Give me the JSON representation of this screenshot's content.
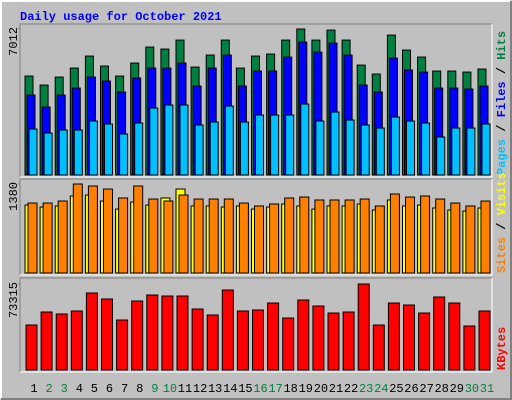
{
  "chart_data": [
    {
      "type": "bar",
      "title": "Daily usage for October 2021",
      "categories": [
        "1",
        "2",
        "3",
        "4",
        "5",
        "6",
        "7",
        "8",
        "9",
        "10",
        "11",
        "12",
        "13",
        "14",
        "15",
        "16",
        "17",
        "18",
        "19",
        "20",
        "21",
        "22",
        "23",
        "24",
        "25",
        "26",
        "27",
        "28",
        "29",
        "30",
        "31"
      ],
      "category_colors": [
        "#000000",
        "#008040",
        "#008040",
        "#000000",
        "#000000",
        "#000000",
        "#000000",
        "#000000",
        "#008040",
        "#008040",
        "#000000",
        "#000000",
        "#000000",
        "#000000",
        "#000000",
        "#008040",
        "#008040",
        "#000000",
        "#000000",
        "#000000",
        "#000000",
        "#000000",
        "#008040",
        "#008040",
        "#000000",
        "#000000",
        "#000000",
        "#000000",
        "#000000",
        "#008040",
        "#008040"
      ],
      "ylim": [
        0,
        7012
      ],
      "yticks": [
        7012
      ],
      "legend_separator": " / ",
      "series": [
        {
          "name": "Hits",
          "color": "#008040",
          "values": [
            4752,
            4320,
            4704,
            5136,
            5712,
            5232,
            4752,
            5376,
            6144,
            6048,
            6480,
            5184,
            5760,
            6480,
            5136,
            5712,
            5808,
            6480,
            7012,
            6480,
            6960,
            6480,
            5280,
            4848,
            6720,
            6000,
            5664,
            4992,
            4992,
            4944,
            5088
          ]
        },
        {
          "name": "Files",
          "color": "#0000ff",
          "values": [
            3840,
            3264,
            3840,
            4176,
            4704,
            4512,
            3984,
            4656,
            5136,
            5136,
            5376,
            4272,
            5136,
            5760,
            4272,
            4992,
            4992,
            5664,
            6384,
            5904,
            6336,
            5760,
            4320,
            3984,
            5616,
            5040,
            4944,
            4176,
            4176,
            4128,
            4272
          ]
        },
        {
          "name": "Pages",
          "color": "#00c0ff",
          "values": [
            2208,
            2016,
            2160,
            2160,
            2592,
            2448,
            1968,
            2496,
            3216,
            3360,
            3360,
            2400,
            2544,
            3312,
            2544,
            2880,
            2880,
            2880,
            3408,
            2592,
            3024,
            2640,
            2400,
            2256,
            2784,
            2592,
            2496,
            1824,
            2256,
            2256,
            2448
          ]
        }
      ]
    },
    {
      "type": "bar",
      "ylim": [
        0,
        1380
      ],
      "yticks": [
        1380
      ],
      "legend_separator": " / ",
      "series": [
        {
          "name": "Visits",
          "color": "#ffff00",
          "values": [
            1054,
            1023,
            1039,
            1194,
            1209,
            1116,
            992,
            1101,
            1054,
            1163,
            1302,
            1039,
            1039,
            1023,
            1039,
            992,
            1023,
            1070,
            1039,
            992,
            1039,
            1039,
            1070,
            977,
            1132,
            1039,
            1054,
            1008,
            977,
            961,
            1008
          ]
        },
        {
          "name": "Sites",
          "color": "#ff8000",
          "values": [
            1085,
            1085,
            1116,
            1380,
            1349,
            1302,
            1163,
            1349,
            1147,
            1116,
            1209,
            1147,
            1147,
            1147,
            1085,
            1039,
            1070,
            1163,
            1178,
            1132,
            1132,
            1132,
            1147,
            1039,
            1225,
            1178,
            1194,
            1147,
            1085,
            1039,
            1116
          ]
        }
      ]
    },
    {
      "type": "bar",
      "ylim": [
        0,
        73315
      ],
      "yticks": [
        73315
      ],
      "series": [
        {
          "name": "KBytes",
          "color": "#ff0000",
          "values": [
            38363,
            49445,
            47740,
            50298,
            65643,
            60528,
            42625,
            58823,
            63938,
            63085,
            63085,
            52003,
            46888,
            68200,
            50298,
            51150,
            57118,
            44330,
            59675,
            54560,
            48593,
            49445,
            73315,
            38363,
            57118,
            55413,
            48593,
            62233,
            57118,
            37510,
            50298
          ]
        }
      ]
    }
  ]
}
